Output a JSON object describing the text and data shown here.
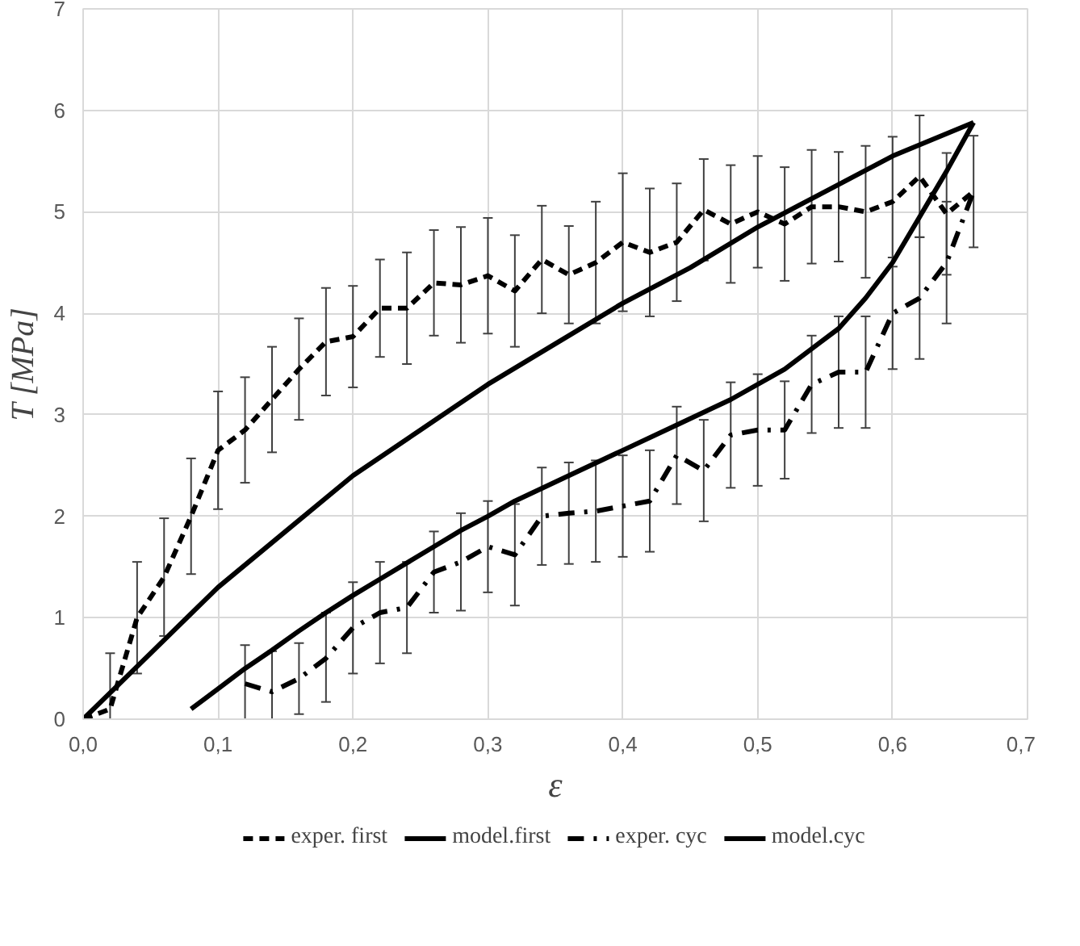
{
  "chart_data": {
    "type": "line",
    "xlabel": "ε",
    "ylabel": "T [MPa]",
    "xlim": [
      0,
      0.7
    ],
    "ylim": [
      0,
      7
    ],
    "xticks": [
      {
        "value": 0,
        "label": "0,0"
      },
      {
        "value": 0.1,
        "label": "0,1"
      },
      {
        "value": 0.2,
        "label": "0,2"
      },
      {
        "value": 0.3,
        "label": "0,3"
      },
      {
        "value": 0.4,
        "label": "0,4"
      },
      {
        "value": 0.5,
        "label": "0,5"
      },
      {
        "value": 0.6,
        "label": "0,6"
      },
      {
        "value": 0.7,
        "label": "0,7"
      }
    ],
    "yticks": [
      0,
      1,
      2,
      3,
      4,
      5,
      6,
      7
    ],
    "grid": true,
    "legend": "bottom",
    "marker": "none",
    "series": [
      {
        "name": "exper. first",
        "color": "#000000",
        "line_style": "dashed",
        "x": [
          0,
          0.02,
          0.04,
          0.06,
          0.08,
          0.1,
          0.12,
          0.14,
          0.16,
          0.18,
          0.2,
          0.22,
          0.24,
          0.26,
          0.28,
          0.3,
          0.32,
          0.34,
          0.36,
          0.38,
          0.4,
          0.42,
          0.44,
          0.46,
          0.48,
          0.5,
          0.52,
          0.54,
          0.56,
          0.58,
          0.6,
          0.62,
          0.64,
          0.66
        ],
        "values": [
          0,
          0.1,
          1.0,
          1.4,
          2.0,
          2.65,
          2.85,
          3.15,
          3.45,
          3.72,
          3.77,
          4.05,
          4.05,
          4.3,
          4.28,
          4.37,
          4.22,
          4.53,
          4.38,
          4.5,
          4.7,
          4.6,
          4.7,
          5.02,
          4.88,
          5.0,
          4.88,
          5.05,
          5.05,
          5.0,
          5.1,
          5.35,
          4.98,
          5.2
        ],
        "errors": [
          null,
          0.55,
          0.55,
          0.58,
          0.57,
          0.58,
          0.52,
          0.52,
          0.5,
          0.53,
          0.5,
          0.48,
          0.55,
          0.52,
          0.57,
          0.57,
          0.55,
          0.53,
          0.48,
          0.6,
          0.68,
          0.63,
          0.58,
          0.5,
          0.58,
          0.55,
          0.56,
          0.56,
          0.54,
          0.65,
          0.64,
          0.6,
          0.6,
          0.55
        ]
      },
      {
        "name": "model.first",
        "color": "#000000",
        "line_style": "solid",
        "x": [
          0,
          0.05,
          0.1,
          0.15,
          0.2,
          0.25,
          0.3,
          0.35,
          0.4,
          0.45,
          0.5,
          0.55,
          0.6,
          0.66
        ],
        "values": [
          0,
          0.65,
          1.3,
          1.85,
          2.4,
          2.85,
          3.3,
          3.7,
          4.1,
          4.45,
          4.85,
          5.2,
          5.55,
          5.88
        ]
      },
      {
        "name": "exper. cyc",
        "color": "#000000",
        "line_style": "dashdot",
        "x": [
          0.12,
          0.14,
          0.16,
          0.18,
          0.2,
          0.22,
          0.24,
          0.26,
          0.28,
          0.3,
          0.32,
          0.34,
          0.36,
          0.38,
          0.4,
          0.42,
          0.44,
          0.46,
          0.48,
          0.5,
          0.52,
          0.54,
          0.56,
          0.58,
          0.6,
          0.62,
          0.64,
          0.66
        ],
        "values": [
          0.35,
          0.27,
          0.4,
          0.6,
          0.9,
          1.05,
          1.1,
          1.45,
          1.55,
          1.7,
          1.62,
          2.0,
          2.03,
          2.05,
          2.1,
          2.15,
          2.6,
          2.45,
          2.8,
          2.85,
          2.85,
          3.3,
          3.42,
          3.42,
          4.0,
          4.15,
          4.5,
          5.2
        ],
        "errors": [
          [
            0,
            0.73
          ],
          [
            0,
            0.67
          ],
          [
            0.05,
            0.75
          ],
          [
            0.17,
            1.05
          ],
          0.45,
          0.5,
          0.45,
          0.4,
          0.48,
          0.45,
          0.5,
          0.48,
          0.5,
          0.5,
          0.5,
          0.5,
          0.48,
          0.5,
          0.52,
          0.55,
          0.48,
          0.48,
          0.55,
          0.55,
          0.55,
          0.6,
          0.6,
          null
        ]
      },
      {
        "name": "model.cyc",
        "color": "#000000",
        "line_style": "solid",
        "x": [
          0.08,
          0.1,
          0.12,
          0.14,
          0.16,
          0.18,
          0.2,
          0.22,
          0.24,
          0.26,
          0.28,
          0.3,
          0.32,
          0.36,
          0.4,
          0.44,
          0.48,
          0.52,
          0.56,
          0.58,
          0.6,
          0.62,
          0.64,
          0.66
        ],
        "values": [
          0.1,
          0.3,
          0.5,
          0.68,
          0.87,
          1.05,
          1.22,
          1.38,
          1.54,
          1.7,
          1.86,
          2.0,
          2.15,
          2.4,
          2.65,
          2.9,
          3.15,
          3.45,
          3.85,
          4.15,
          4.5,
          4.95,
          5.4,
          5.88
        ]
      }
    ]
  }
}
